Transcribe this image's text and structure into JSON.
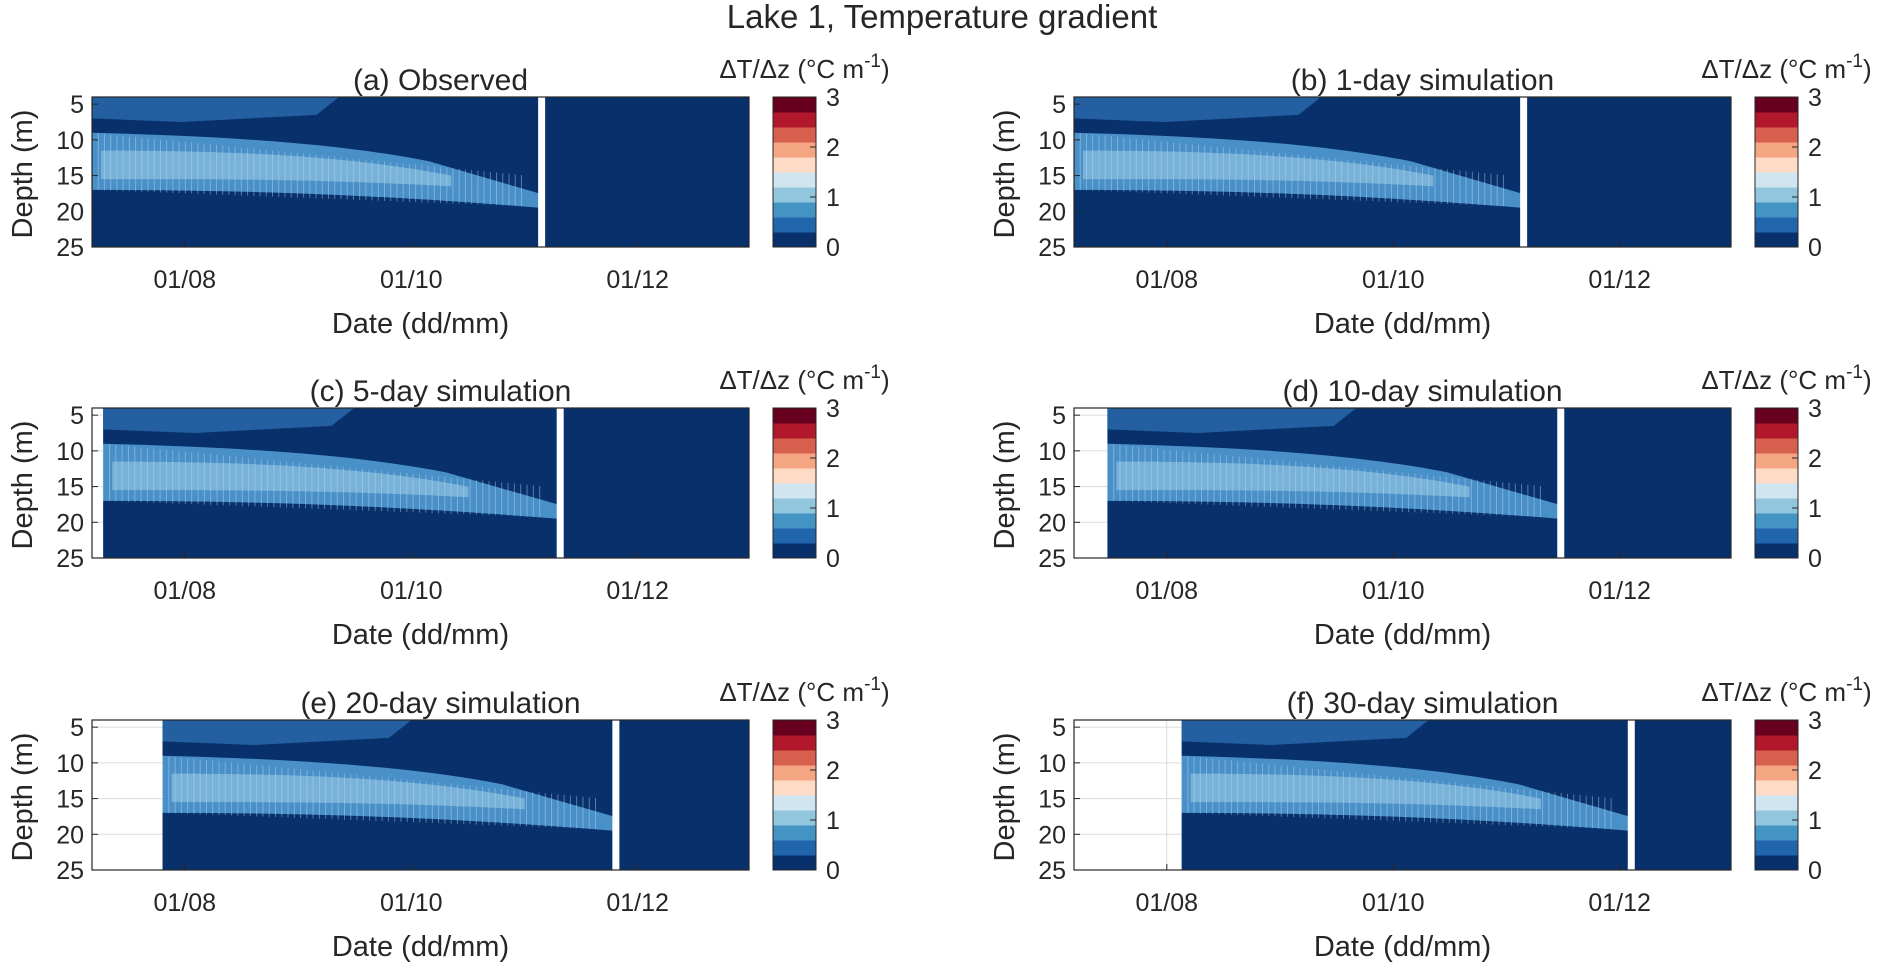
{
  "figure": {
    "title": "Lake 1, Temperature gradient"
  },
  "chart_data": [
    {
      "type": "heatmap",
      "title": "(a) Observed",
      "xlabel": "Date (dd/mm)",
      "ylabel": "Depth (m)",
      "xticks": [
        "01/08",
        "01/10",
        "01/12"
      ],
      "yticks": [
        5,
        10,
        15,
        20,
        25
      ],
      "ylim": [
        4,
        25
      ],
      "yreversed": true,
      "start_date": "07/07",
      "gap_date": "05/11",
      "colorbar": {
        "label": "ΔT/Δz (°C m",
        "label_sup": "-1",
        "label_close": ")",
        "ticks": [
          0,
          1,
          2,
          3
        ],
        "range": [
          0,
          3
        ]
      }
    },
    {
      "type": "heatmap",
      "title": "(b) 1-day simulation",
      "xlabel": "Date (dd/mm)",
      "ylabel": "Depth (m)",
      "xticks": [
        "01/08",
        "01/10",
        "01/12"
      ],
      "yticks": [
        5,
        10,
        15,
        20,
        25
      ],
      "ylim": [
        4,
        25
      ],
      "yreversed": true,
      "start_date": "07/07",
      "gap_date": "05/11",
      "colorbar": {
        "label": "ΔT/Δz (°C m",
        "label_sup": "-1",
        "label_close": ")",
        "ticks": [
          0,
          1,
          2,
          3
        ],
        "range": [
          0,
          3
        ]
      }
    },
    {
      "type": "heatmap",
      "title": "(c) 5-day simulation",
      "xlabel": "Date (dd/mm)",
      "ylabel": "Depth (m)",
      "xticks": [
        "01/08",
        "01/10",
        "01/12"
      ],
      "yticks": [
        5,
        10,
        15,
        20,
        25
      ],
      "ylim": [
        4,
        25
      ],
      "yreversed": true,
      "start_date": "10/07",
      "gap_date": "10/11",
      "colorbar": {
        "label": "ΔT/Δz (°C m",
        "label_sup": "-1",
        "label_close": ")",
        "ticks": [
          0,
          1,
          2,
          3
        ],
        "range": [
          0,
          3
        ]
      }
    },
    {
      "type": "heatmap",
      "title": "(d) 10-day simulation",
      "xlabel": "Date (dd/mm)",
      "ylabel": "Depth (m)",
      "xticks": [
        "01/08",
        "01/10",
        "01/12"
      ],
      "yticks": [
        5,
        10,
        15,
        20,
        25
      ],
      "ylim": [
        4,
        25
      ],
      "yreversed": true,
      "start_date": "16/07",
      "gap_date": "15/11",
      "colorbar": {
        "label": "ΔT/Δz (°C m",
        "label_sup": "-1",
        "label_close": ")",
        "ticks": [
          0,
          1,
          2,
          3
        ],
        "range": [
          0,
          3
        ]
      }
    },
    {
      "type": "heatmap",
      "title": "(e) 20-day simulation",
      "xlabel": "Date (dd/mm)",
      "ylabel": "Depth (m)",
      "xticks": [
        "01/08",
        "01/10",
        "01/12"
      ],
      "yticks": [
        5,
        10,
        15,
        20,
        25
      ],
      "ylim": [
        4,
        25
      ],
      "yreversed": true,
      "start_date": "26/07",
      "gap_date": "25/11",
      "colorbar": {
        "label": "ΔT/Δz (°C m",
        "label_sup": "-1",
        "label_close": ")",
        "ticks": [
          0,
          1,
          2,
          3
        ],
        "range": [
          0,
          3
        ]
      }
    },
    {
      "type": "heatmap",
      "title": "(f) 30-day simulation",
      "xlabel": "Date (dd/mm)",
      "ylabel": "Depth (m)",
      "xticks": [
        "01/08",
        "01/10",
        "01/12"
      ],
      "yticks": [
        5,
        10,
        15,
        20,
        25
      ],
      "ylim": [
        4,
        25
      ],
      "yreversed": true,
      "start_date": "05/08",
      "gap_date": "04/12",
      "colorbar": {
        "label": "ΔT/Δz (°C m",
        "label_sup": "-1",
        "label_close": ")",
        "ticks": [
          0,
          1,
          2,
          3
        ],
        "range": [
          0,
          3
        ]
      }
    }
  ],
  "colors": {
    "background_field": "#08306b",
    "colorbar": [
      "#08306b",
      "#2166ac",
      "#4393c3",
      "#92c5de",
      "#d1e5f0",
      "#fddbc7",
      "#f4a582",
      "#d6604d",
      "#b2182b",
      "#67001f"
    ]
  }
}
